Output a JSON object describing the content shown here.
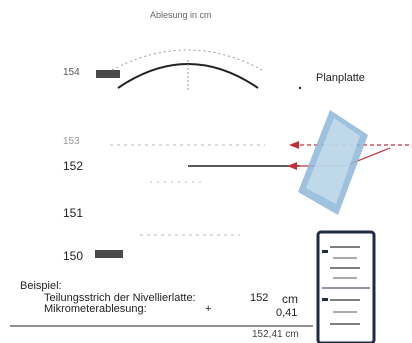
{
  "header": {
    "title": "Ablesung in cm"
  },
  "scale": {
    "labels": [
      "154",
      "153",
      "152",
      "151",
      "150"
    ]
  },
  "prism": {
    "label": "Planplatte"
  },
  "example": {
    "heading": "Beispiel:",
    "line1_label": "Teilungsstrich der Nivellierlatte:",
    "line1_value": "152",
    "line1_unit": "cm",
    "line2_label": "Mikrometerablesung:",
    "line2_op": "+",
    "line2_value": "0,41",
    "result": "152,41 cm"
  },
  "colors": {
    "ray": "#c0303a",
    "prism": "#8db6d8",
    "bar": "#4a4a4a"
  }
}
